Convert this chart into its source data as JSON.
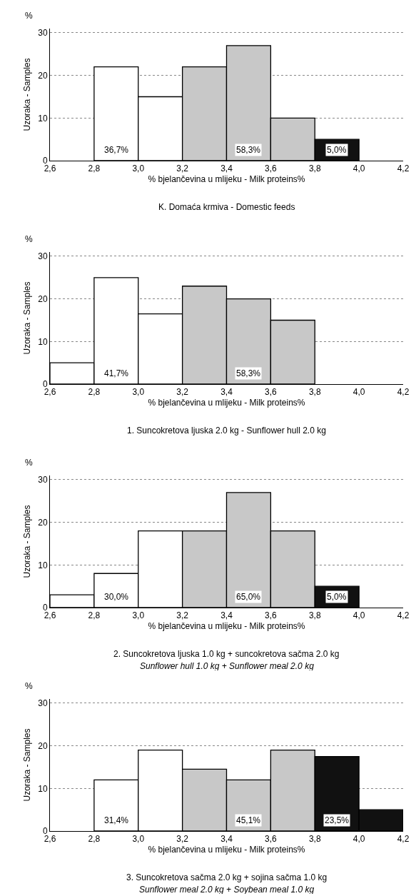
{
  "chart_data": [
    {
      "type": "histogram",
      "title": "K. Domaća krmiva - Domestic feeds",
      "xlabel": "% bjelančevina u mlijeku - Milk proteins%",
      "ylabel": "Uzoraka - Samples",
      "bins": [
        2.6,
        2.8,
        3.0,
        3.2,
        3.4,
        3.6,
        3.8,
        4.0,
        4.2
      ],
      "values": [
        0,
        22,
        15,
        22,
        27,
        10,
        5,
        0
      ],
      "colors": [
        "#ffffff",
        "#ffffff",
        "#ffffff",
        "#c8c8c8",
        "#c8c8c8",
        "#c8c8c8",
        "#111111",
        "#111111"
      ],
      "xlim": [
        2.6,
        4.2
      ],
      "xticks": [
        {
          "value": 2.6,
          "label": "2,6"
        },
        {
          "value": 2.8,
          "label": "2,8"
        },
        {
          "value": 3.0,
          "label": "3,0"
        },
        {
          "value": 3.2,
          "label": "3,2"
        },
        {
          "value": 3.4,
          "label": "3,4"
        },
        {
          "value": 3.6,
          "label": "3,6"
        },
        {
          "value": 3.8,
          "label": "3,8"
        },
        {
          "value": 4.0,
          "label": "4,0"
        },
        {
          "value": 4.2,
          "label": "4,2"
        }
      ],
      "ylim": [
        0,
        31
      ],
      "yticks": [
        0,
        10,
        20,
        30
      ],
      "grid": "y",
      "annotations": [
        "%",
        {
          "text": "36,7%",
          "x": 2.9,
          "y": 2.5
        },
        {
          "text": "58,3%",
          "x": 3.5,
          "y": 2.5
        },
        {
          "text": "5,0%",
          "x": 3.9,
          "y": 2.5
        }
      ]
    },
    {
      "type": "histogram",
      "title": "1. Suncokretova ljuska 2.0 kg - Sunflower hull 2.0 kg",
      "xlabel": "% bjelančevina u mlijeku - Milk proteins%",
      "ylabel": "Uzoraka - Samples",
      "bins": [
        2.6,
        2.8,
        3.0,
        3.2,
        3.4,
        3.6,
        3.8,
        4.0,
        4.2
      ],
      "values": [
        5,
        25,
        16.5,
        23,
        20,
        15,
        0,
        0
      ],
      "colors": [
        "#ffffff",
        "#ffffff",
        "#ffffff",
        "#c8c8c8",
        "#c8c8c8",
        "#c8c8c8",
        "#111111",
        "#111111"
      ],
      "xlim": [
        2.6,
        4.2
      ],
      "xticks": [
        {
          "value": 2.6,
          "label": "2,6"
        },
        {
          "value": 2.8,
          "label": "2,8"
        },
        {
          "value": 3.0,
          "label": "3,0"
        },
        {
          "value": 3.2,
          "label": "3,2"
        },
        {
          "value": 3.4,
          "label": "3,4"
        },
        {
          "value": 3.6,
          "label": "3,6"
        },
        {
          "value": 3.8,
          "label": "3,8"
        },
        {
          "value": 4.0,
          "label": "4,0"
        },
        {
          "value": 4.2,
          "label": "4,2"
        }
      ],
      "ylim": [
        0,
        31
      ],
      "yticks": [
        0,
        10,
        20,
        30
      ],
      "grid": "y",
      "annotations": [
        "%",
        {
          "text": "41,7%",
          "x": 2.9,
          "y": 2.5
        },
        {
          "text": "58,3%",
          "x": 3.5,
          "y": 2.5
        }
      ]
    },
    {
      "type": "histogram",
      "title": "2. Suncokretova ljuska 1.0 kg + suncokretova sačma 2.0 kg",
      "subtitle": "Sunflower hull 1.0 kg + Sunflower meal 2.0 kg",
      "xlabel": "% bjelančevina u mlijeku - Milk proteins%",
      "ylabel": "Uzoraka - Samples",
      "bins": [
        2.6,
        2.8,
        3.0,
        3.2,
        3.4,
        3.6,
        3.8,
        4.0,
        4.2
      ],
      "values": [
        3,
        8,
        18,
        18,
        27,
        18,
        5,
        0
      ],
      "colors": [
        "#ffffff",
        "#ffffff",
        "#ffffff",
        "#c8c8c8",
        "#c8c8c8",
        "#c8c8c8",
        "#111111",
        "#111111"
      ],
      "xlim": [
        2.6,
        4.2
      ],
      "xticks": [
        {
          "value": 2.6,
          "label": "2,6"
        },
        {
          "value": 2.8,
          "label": "2,8"
        },
        {
          "value": 3.0,
          "label": "3,0"
        },
        {
          "value": 3.2,
          "label": "3,2"
        },
        {
          "value": 3.4,
          "label": "3,4"
        },
        {
          "value": 3.6,
          "label": "3,6"
        },
        {
          "value": 3.8,
          "label": "3,8"
        },
        {
          "value": 4.0,
          "label": "4,0"
        },
        {
          "value": 4.2,
          "label": "4,2"
        }
      ],
      "ylim": [
        0,
        31
      ],
      "yticks": [
        0,
        10,
        20,
        30
      ],
      "grid": "y",
      "annotations": [
        "%",
        {
          "text": "30,0%",
          "x": 2.9,
          "y": 2.5
        },
        {
          "text": "65,0%",
          "x": 3.5,
          "y": 2.5
        },
        {
          "text": "5,0%",
          "x": 3.9,
          "y": 2.5
        }
      ]
    },
    {
      "type": "histogram",
      "title": "3. Suncokretova sačma 2.0 kg + sojina sačma 1.0 kg",
      "subtitle": "Sunflower meal 2.0 kg + Soybean meal 1.0 kg",
      "xlabel": "% bjelančevina u mlijeku - Milk proteins%",
      "ylabel": "Uzoraka - Samples",
      "bins": [
        2.6,
        2.8,
        3.0,
        3.2,
        3.4,
        3.6,
        3.8,
        4.0,
        4.2
      ],
      "values": [
        0,
        12,
        19,
        14.5,
        12,
        19,
        17.5,
        5
      ],
      "colors": [
        "#ffffff",
        "#ffffff",
        "#ffffff",
        "#c8c8c8",
        "#c8c8c8",
        "#c8c8c8",
        "#111111",
        "#111111"
      ],
      "xlim": [
        2.6,
        4.2
      ],
      "xticks": [
        {
          "value": 2.6,
          "label": "2,6"
        },
        {
          "value": 2.8,
          "label": "2,8"
        },
        {
          "value": 3.0,
          "label": "3,0"
        },
        {
          "value": 3.2,
          "label": "3,2"
        },
        {
          "value": 3.4,
          "label": "3,4"
        },
        {
          "value": 3.6,
          "label": "3,6"
        },
        {
          "value": 3.8,
          "label": "3,8"
        },
        {
          "value": 4.0,
          "label": "4,0"
        },
        {
          "value": 4.2,
          "label": "4,2"
        }
      ],
      "ylim": [
        0,
        31
      ],
      "yticks": [
        0,
        10,
        20,
        30
      ],
      "grid": "y",
      "annotations": [
        "%",
        {
          "text": "31,4%",
          "x": 2.9,
          "y": 2.5
        },
        {
          "text": "45,1%",
          "x": 3.5,
          "y": 2.5
        },
        {
          "text": "23,5%",
          "x": 3.9,
          "y": 2.5
        }
      ]
    }
  ]
}
